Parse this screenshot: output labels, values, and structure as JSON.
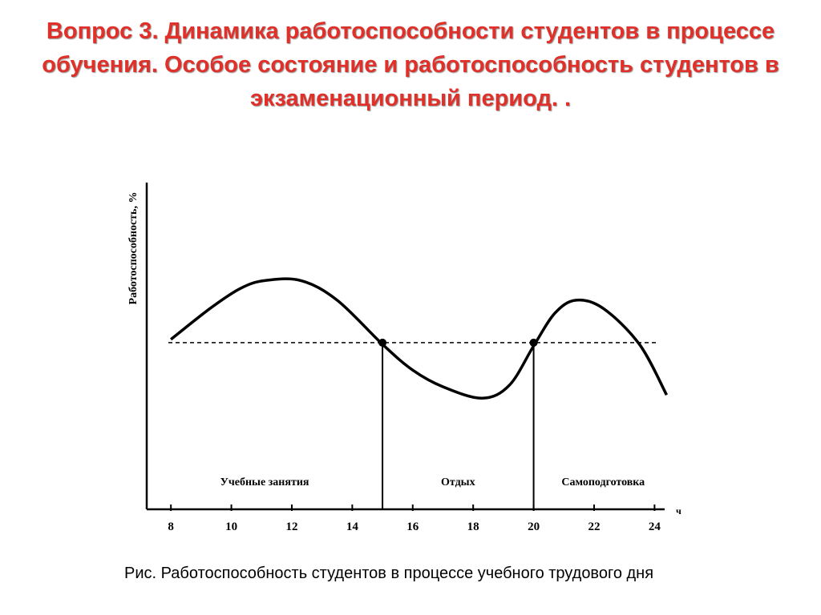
{
  "chart_data": {
    "type": "line",
    "title": "Вопрос 3. Динамика работоспособности студентов в процессе обучения. Особое состояние и работоспособность студентов в экзаменационный период. .",
    "caption": "Рис. Работоспособность студентов в процессе учебного трудового дня",
    "y_label": "Работоспособность, %",
    "x_label": "ч",
    "x": [
      8,
      9.3,
      10.3,
      11.1,
      12.3,
      13.5,
      15,
      16,
      17,
      18.3,
      19.2,
      20,
      20.7,
      21.4,
      22.3,
      23.5,
      24.4
    ],
    "series": [
      {
        "color": "#000000",
        "values": [
          52,
          61.5,
          67.6,
          70,
          70,
          64,
          50.5,
          42.6,
          37.5,
          34,
          38,
          50,
          60,
          64,
          61.5,
          50.5,
          35
        ]
      }
    ],
    "reference_line": 51,
    "points": {
      "x": [
        15,
        20
      ],
      "y": [
        51,
        51
      ]
    },
    "regions": [
      {
        "label": "Учебные занятия",
        "from": 7.2,
        "to": 15
      },
      {
        "label": "Отдых",
        "from": 15,
        "to": 20
      },
      {
        "label": "Самоподготовка",
        "from": 20,
        "to": 24.6
      }
    ],
    "xlim": [
      7.2,
      24.6
    ],
    "ylim": [
      0,
      100
    ],
    "xticks": [
      8,
      10,
      12,
      14,
      16,
      18,
      20,
      22,
      24
    ]
  }
}
